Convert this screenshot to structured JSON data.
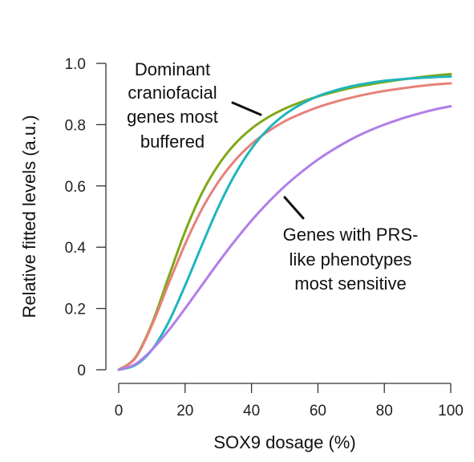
{
  "chart_data": {
    "type": "line",
    "xlabel": "SOX9 dosage (%)",
    "ylabel": "Relative fitted levels (a.u.)",
    "xlim": [
      0,
      100
    ],
    "ylim": [
      0,
      1
    ],
    "xticks": [
      0,
      20,
      40,
      60,
      80,
      100
    ],
    "yticks": [
      0,
      0.2,
      0.4,
      0.6,
      0.8,
      1.0
    ],
    "xtick_labels": [
      "0",
      "20",
      "40",
      "60",
      "80",
      "100"
    ],
    "ytick_labels": [
      "0",
      "0.2",
      "0.4",
      "0.6",
      "0.8",
      "1.0"
    ],
    "grid": false,
    "x": [
      0,
      5,
      10,
      15,
      20,
      25,
      30,
      35,
      40,
      45,
      50,
      55,
      60,
      65,
      70,
      75,
      80,
      85,
      90,
      95,
      100
    ],
    "series": [
      {
        "color": "#7fa817",
        "values": [
          0.0,
          0.04,
          0.15,
          0.302,
          0.451,
          0.575,
          0.668,
          0.737,
          0.787,
          0.824,
          0.852,
          0.874,
          0.892,
          0.907,
          0.92,
          0.93,
          0.939,
          0.947,
          0.954,
          0.96,
          0.965
        ]
      },
      {
        "color": "#e8807a",
        "values": [
          0.0,
          0.038,
          0.145,
          0.28,
          0.41,
          0.523,
          0.613,
          0.683,
          0.737,
          0.778,
          0.811,
          0.836,
          0.857,
          0.874,
          0.888,
          0.9,
          0.91,
          0.918,
          0.925,
          0.931,
          0.935
        ]
      },
      {
        "color": "#1fb5bc",
        "values": [
          0.0,
          0.015,
          0.065,
          0.155,
          0.275,
          0.405,
          0.53,
          0.637,
          0.722,
          0.786,
          0.833,
          0.867,
          0.893,
          0.911,
          0.925,
          0.935,
          0.943,
          0.948,
          0.952,
          0.955,
          0.957
        ]
      },
      {
        "color": "#b07ee8",
        "values": [
          0.0,
          0.018,
          0.065,
          0.128,
          0.2,
          0.275,
          0.35,
          0.421,
          0.487,
          0.546,
          0.599,
          0.645,
          0.686,
          0.721,
          0.752,
          0.778,
          0.8,
          0.819,
          0.835,
          0.849,
          0.86
        ]
      }
    ],
    "annotations": [
      {
        "lines": [
          "Dominant",
          "craniofacial",
          "genes most",
          "buffered"
        ]
      },
      {
        "lines": [
          "Genes with PRS-",
          "like phenotypes",
          "most sensitive"
        ]
      }
    ]
  }
}
